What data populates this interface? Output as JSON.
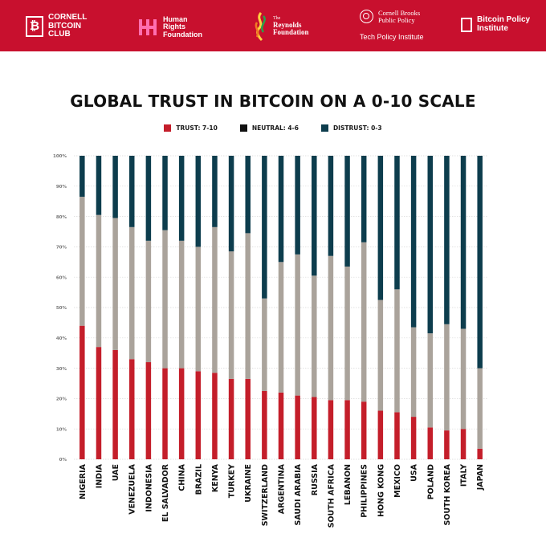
{
  "header": {
    "background_color": "#c8102e",
    "logos": {
      "cornell_bitcoin_club": {
        "line1": "CORNELL",
        "line2": "BITCOIN",
        "line3": "CLUB",
        "icon": "bitcoin-icon"
      },
      "human_rights_foundation": {
        "line1": "Human",
        "line2": "Rights",
        "line3": "Foundation"
      },
      "reynolds_foundation": {
        "small": "The",
        "line1": "Reynolds",
        "line2": "Foundation"
      },
      "cornell_brooks": {
        "line1": "Cornell Brooks",
        "line2": "Public Policy",
        "sub": "Tech Policy Institute"
      },
      "bitcoin_policy_institute": {
        "line1": "Bitcoin Policy",
        "line2": "Institute"
      }
    }
  },
  "chart_data": {
    "type": "bar",
    "stacked": true,
    "title": "GLOBAL TRUST IN BITCOIN ON A 0-10 SCALE",
    "xlabel": "",
    "ylabel": "",
    "ylim": [
      0,
      100
    ],
    "yticks": [
      "0%",
      "10%",
      "20%",
      "30%",
      "40%",
      "50%",
      "60%",
      "70%",
      "80%",
      "90%",
      "100%"
    ],
    "grid": true,
    "legend_position": "top-center",
    "categories": [
      "NIGERIA",
      "INDIA",
      "UAE",
      "VENEZUELA",
      "INDONESIA",
      "EL SALVADOR",
      "CHINA",
      "BRAZIL",
      "KENYA",
      "TURKEY",
      "UKRAINE",
      "SWITZERLAND",
      "ARGENTINA",
      "SAUDI ARABIA",
      "RUSSIA",
      "SOUTH AFRICA",
      "LEBANON",
      "PHILIPPINES",
      "HONG KONG",
      "MEXICO",
      "USA",
      "POLAND",
      "SOUTH KOREA",
      "ITALY",
      "JAPAN"
    ],
    "series": [
      {
        "name": "TRUST: 7-10",
        "color": "#c41e2a",
        "values": [
          44,
          37,
          36,
          33,
          32,
          30,
          30,
          29,
          28.5,
          26.5,
          26.5,
          22.5,
          22,
          21,
          20.5,
          19.5,
          19.5,
          19,
          16,
          15.5,
          14,
          10.5,
          9.5,
          10,
          3.5
        ]
      },
      {
        "name": "NEUTRAL: 4-6",
        "color": "#aaa39b",
        "values": [
          42.5,
          43.5,
          43.5,
          43.5,
          40,
          45.5,
          42,
          41,
          48,
          42,
          48,
          30.5,
          43,
          46.5,
          40,
          47.5,
          44,
          52.5,
          36.5,
          40.5,
          29.5,
          31,
          35,
          33,
          26.5
        ]
      },
      {
        "name": "DISTRUST: 0-3",
        "color": "#0d3d4d",
        "values": [
          13.5,
          19.5,
          20.5,
          23.5,
          28,
          24.5,
          28,
          30,
          23.5,
          31.5,
          25.5,
          47,
          35,
          32.5,
          39.5,
          33,
          36.5,
          28.5,
          47.5,
          44,
          56.5,
          58.5,
          55.5,
          57,
          70
        ]
      }
    ],
    "neutral_legend_color": "#111111"
  }
}
